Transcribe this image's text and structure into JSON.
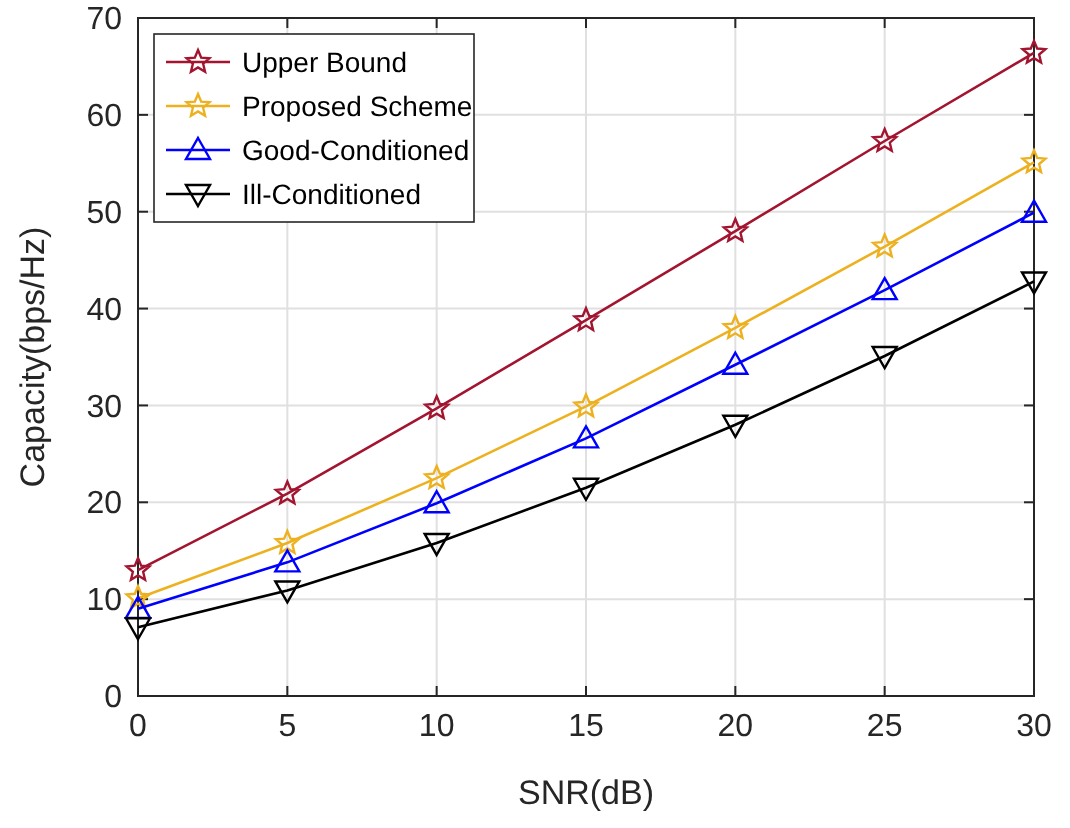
{
  "chart_data": {
    "type": "line",
    "xlabel": "SNR(dB)",
    "ylabel": "Capacity(bps/Hz)",
    "x": [
      0,
      5,
      10,
      15,
      20,
      25,
      30
    ],
    "series": [
      {
        "name": "Upper Bound",
        "color": "#a2142f",
        "marker": "star",
        "values": [
          13.0,
          20.9,
          29.7,
          38.8,
          48.0,
          57.3,
          66.4
        ]
      },
      {
        "name": "Proposed Scheme",
        "color": "#edb120",
        "marker": "star",
        "values": [
          10.1,
          15.8,
          22.5,
          29.9,
          38.0,
          46.4,
          55.1
        ]
      },
      {
        "name": "Good-Conditioned",
        "color": "#0000ff",
        "marker": "triangle",
        "values": [
          9.0,
          13.8,
          19.9,
          26.6,
          34.2,
          41.9,
          49.9
        ]
      },
      {
        "name": "Ill-Conditioned",
        "color": "#000000",
        "marker": "triangle-down",
        "values": [
          7.1,
          10.9,
          15.8,
          21.5,
          28.0,
          35.1,
          42.8
        ]
      }
    ],
    "xlim": [
      0,
      30
    ],
    "xticks": [
      0,
      5,
      10,
      15,
      20,
      25,
      30
    ],
    "ylim": [
      0,
      70
    ],
    "yticks": [
      0,
      10,
      20,
      30,
      40,
      50,
      60,
      70
    ],
    "grid": true,
    "legend": "top left",
    "line_style": "solid"
  }
}
